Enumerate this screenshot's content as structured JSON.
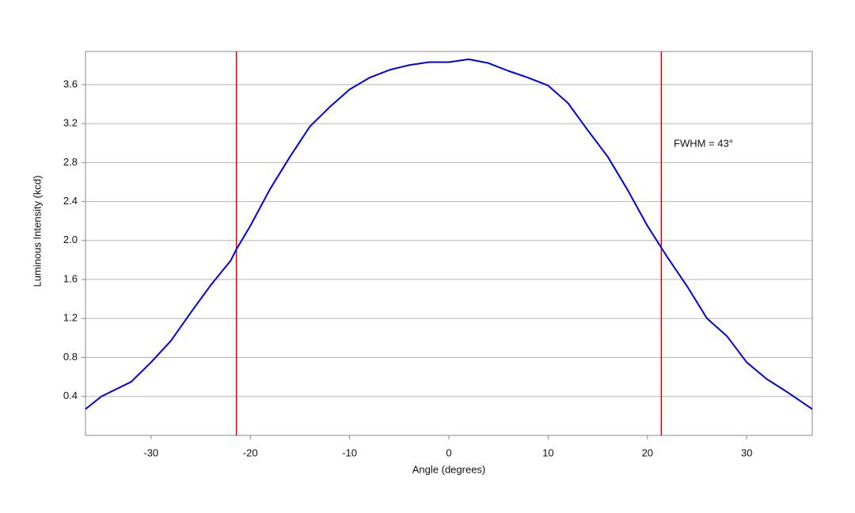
{
  "chart_data": {
    "type": "line",
    "x_label": "Angle (degrees)",
    "y_label": "Luminous Intensity (kcd)",
    "annotation": "FWHM = 43°",
    "x": [
      -36.6,
      -35,
      -32,
      -30,
      -28,
      -26,
      -24,
      -22,
      -21.4,
      -20,
      -18,
      -16,
      -14,
      -12,
      -10,
      -8,
      -6,
      -4,
      -2,
      0,
      2,
      4,
      6,
      8,
      10,
      12,
      14,
      16,
      18,
      20,
      22,
      24,
      26,
      28,
      30,
      32,
      34,
      36.6
    ],
    "series": [
      {
        "color": "#0000dd",
        "values": [
          0.27,
          0.4,
          0.55,
          0.75,
          0.97,
          1.26,
          1.54,
          1.79,
          1.91,
          2.15,
          2.53,
          2.86,
          3.17,
          3.37,
          3.55,
          3.67,
          3.75,
          3.8,
          3.83,
          3.83,
          3.86,
          3.82,
          3.74,
          3.67,
          3.59,
          3.41,
          3.13,
          2.86,
          2.52,
          2.15,
          1.83,
          1.53,
          1.2,
          1.02,
          0.75,
          0.58,
          0.45,
          0.27
        ]
      }
    ],
    "vlines": [
      -21.4,
      21.4
    ],
    "vline_color": "#dd0000",
    "xlim": [
      -36.6,
      36.6
    ],
    "ylim": [
      0,
      3.94
    ],
    "xticks": [
      -30,
      -20,
      -10,
      0,
      10,
      20,
      30
    ],
    "yticks": [
      0.4,
      0.8,
      1.2,
      1.6,
      {
        "value": 2,
        "label": "2.0"
      },
      2.4,
      2.8,
      3.2,
      3.6
    ],
    "grid": true
  }
}
